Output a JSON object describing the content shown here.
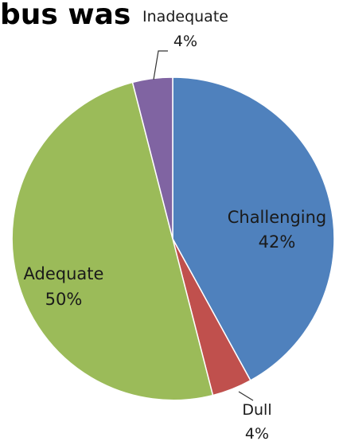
{
  "chart_data": {
    "type": "pie",
    "title": "bus was",
    "slices": [
      {
        "label": "Challenging",
        "value": 42,
        "display": "42%",
        "color": "#4f81bd"
      },
      {
        "label": "Dull",
        "value": 4,
        "display": "4%",
        "color": "#c0504d"
      },
      {
        "label": "Adequate",
        "value": 50,
        "display": "50%",
        "color": "#9bbb59"
      },
      {
        "label": "Inadequate",
        "value": 4,
        "display": "4%",
        "color": "#8064a2"
      }
    ],
    "start": "12 o'clock",
    "direction": "clockwise",
    "legend": "none"
  }
}
